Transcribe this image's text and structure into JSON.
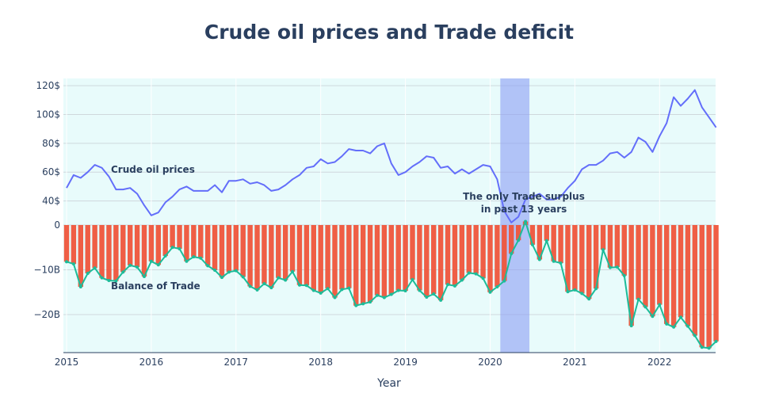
{
  "chart_data": {
    "type": "line+bar",
    "title": "Crude oil prices and Trade deficit",
    "xlabel": "Year",
    "ylabel": "",
    "x_start": "2015-01",
    "x_ticks": [
      "2015",
      "2016",
      "2017",
      "2018",
      "2019",
      "2020",
      "2021",
      "2022"
    ],
    "y_top": {
      "range": [
        20,
        125
      ],
      "tick_values": [
        40,
        60,
        80,
        100,
        120
      ],
      "tick_labels": [
        "40$",
        "60$",
        "80$",
        "100$",
        "120$"
      ]
    },
    "y_bottom": {
      "range": [
        -28.5,
        0
      ],
      "tick_values": [
        0,
        -10,
        -20
      ],
      "tick_labels": [
        "0",
        "−10B",
        "−20B"
      ]
    },
    "highlight": {
      "x0": "2020-03",
      "x1": "2020-06",
      "color": "#8c9ef5"
    },
    "annotations": {
      "oil": "Crude oil prices",
      "balance": "Balance of Trade",
      "surplus_line1": "The only Trade surplus",
      "surplus_line2": "in past 13 years"
    },
    "series": [
      {
        "name": "Crude oil prices",
        "kind": "line",
        "axis": "top",
        "color": "#636efa",
        "values": [
          49,
          58,
          56,
          60,
          65,
          63,
          57,
          48,
          48,
          49,
          45,
          37,
          30,
          32,
          39,
          43,
          48,
          50,
          47,
          47,
          47,
          51,
          46,
          54,
          54,
          55,
          52,
          53,
          51,
          47,
          48,
          51,
          55,
          58,
          63,
          64,
          69,
          66,
          67,
          71,
          76,
          75,
          75,
          73,
          78,
          80,
          66,
          58,
          60,
          64,
          67,
          71,
          70,
          63,
          64,
          59,
          62,
          59,
          62,
          65,
          64,
          55,
          33,
          25,
          29,
          41,
          43,
          45,
          41,
          41,
          43,
          49,
          54,
          62,
          65,
          65,
          68,
          73,
          74,
          70,
          74,
          84,
          81,
          74,
          85,
          94,
          112,
          106,
          111,
          117,
          105,
          98,
          91
        ]
      },
      {
        "name": "Balance of Trade",
        "kind": "bar+line",
        "axis": "bottom",
        "bar_color": "#ef553b",
        "line_color": "#1cbc99",
        "values": [
          -8.2,
          -8.7,
          -13.8,
          -10.8,
          -9.6,
          -11.8,
          -12.4,
          -12.5,
          -10.5,
          -9,
          -9.4,
          -11.5,
          -8.1,
          -8.9,
          -6.9,
          -5,
          -5.3,
          -8.1,
          -7.1,
          -7.4,
          -9.1,
          -10.1,
          -11.7,
          -10.5,
          -10.2,
          -11.6,
          -13.7,
          -14.5,
          -13.1,
          -14,
          -11.8,
          -12.3,
          -10.4,
          -13.4,
          -13.5,
          -14.6,
          -15.2,
          -14.2,
          -16.2,
          -14.4,
          -14.1,
          -18,
          -17.6,
          -17.2,
          -15.7,
          -16.2,
          -15.5,
          -14.6,
          -14.7,
          -12.2,
          -14.6,
          -16.1,
          -15.4,
          -16.8,
          -13.3,
          -13.6,
          -12.3,
          -10.7,
          -10.9,
          -11.9,
          -15,
          -13.8,
          -12.5,
          -6.4,
          -3.4,
          0.8,
          -4.4,
          -7.7,
          -3.5,
          -8.1,
          -8.5,
          -14.9,
          -14.5,
          -15.3,
          -16.5,
          -14.2,
          -5.5,
          -9.5,
          -9.4,
          -11.3,
          -22.5,
          -16.6,
          -18.3,
          -20.4,
          -17.8,
          -22.1,
          -22.8,
          -20.6,
          -22.6,
          -24.7,
          -27.3,
          -27.5,
          -26
        ]
      }
    ]
  }
}
